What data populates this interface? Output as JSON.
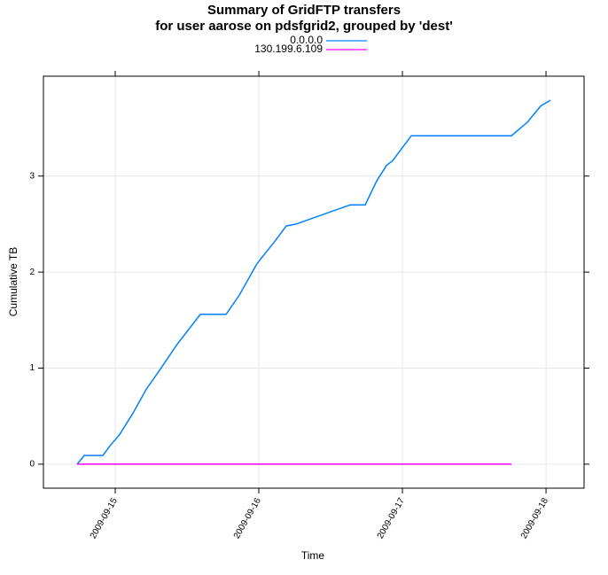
{
  "chart_data": {
    "type": "line",
    "title": [
      "Summary of GridFTP transfers",
      "for user aarose on pdsfgrid2, grouped by 'dest'"
    ],
    "xlabel": "Time",
    "ylabel": "Cumulative TB",
    "xlim": [
      -0.5,
      3.265
    ],
    "ylim": [
      -0.25,
      4.04
    ],
    "xticks": [
      {
        "value": 0,
        "label": "2009-09-15"
      },
      {
        "value": 1,
        "label": "2009-09-16"
      },
      {
        "value": 2,
        "label": "2009-09-17"
      },
      {
        "value": 3,
        "label": "2009-09-18"
      }
    ],
    "yticks": [
      0,
      1,
      2,
      3
    ],
    "grid": true,
    "legend": "top",
    "series": [
      {
        "name": "0.0.0.0",
        "color": "#0080ff",
        "x": [
          -0.265,
          -0.216,
          -0.086,
          -0.037,
          0.031,
          0.123,
          0.216,
          0.296,
          0.432,
          0.593,
          0.772,
          0.864,
          0.988,
          1.111,
          1.191,
          1.259,
          1.636,
          1.741,
          1.821,
          1.889,
          1.932,
          2.062,
          2.759,
          2.87,
          2.963,
          3.031
        ],
        "values": [
          0,
          0.09,
          0.09,
          0.19,
          0.31,
          0.53,
          0.78,
          0.95,
          1.25,
          1.56,
          1.56,
          1.76,
          2.09,
          2.32,
          2.48,
          2.5,
          2.7,
          2.7,
          2.95,
          3.11,
          3.16,
          3.42,
          3.42,
          3.56,
          3.73,
          3.79
        ]
      },
      {
        "name": "130.199.6.109",
        "color": "#ff00ff",
        "x": [
          -0.265,
          2.759
        ],
        "values": [
          0,
          0
        ]
      }
    ]
  }
}
